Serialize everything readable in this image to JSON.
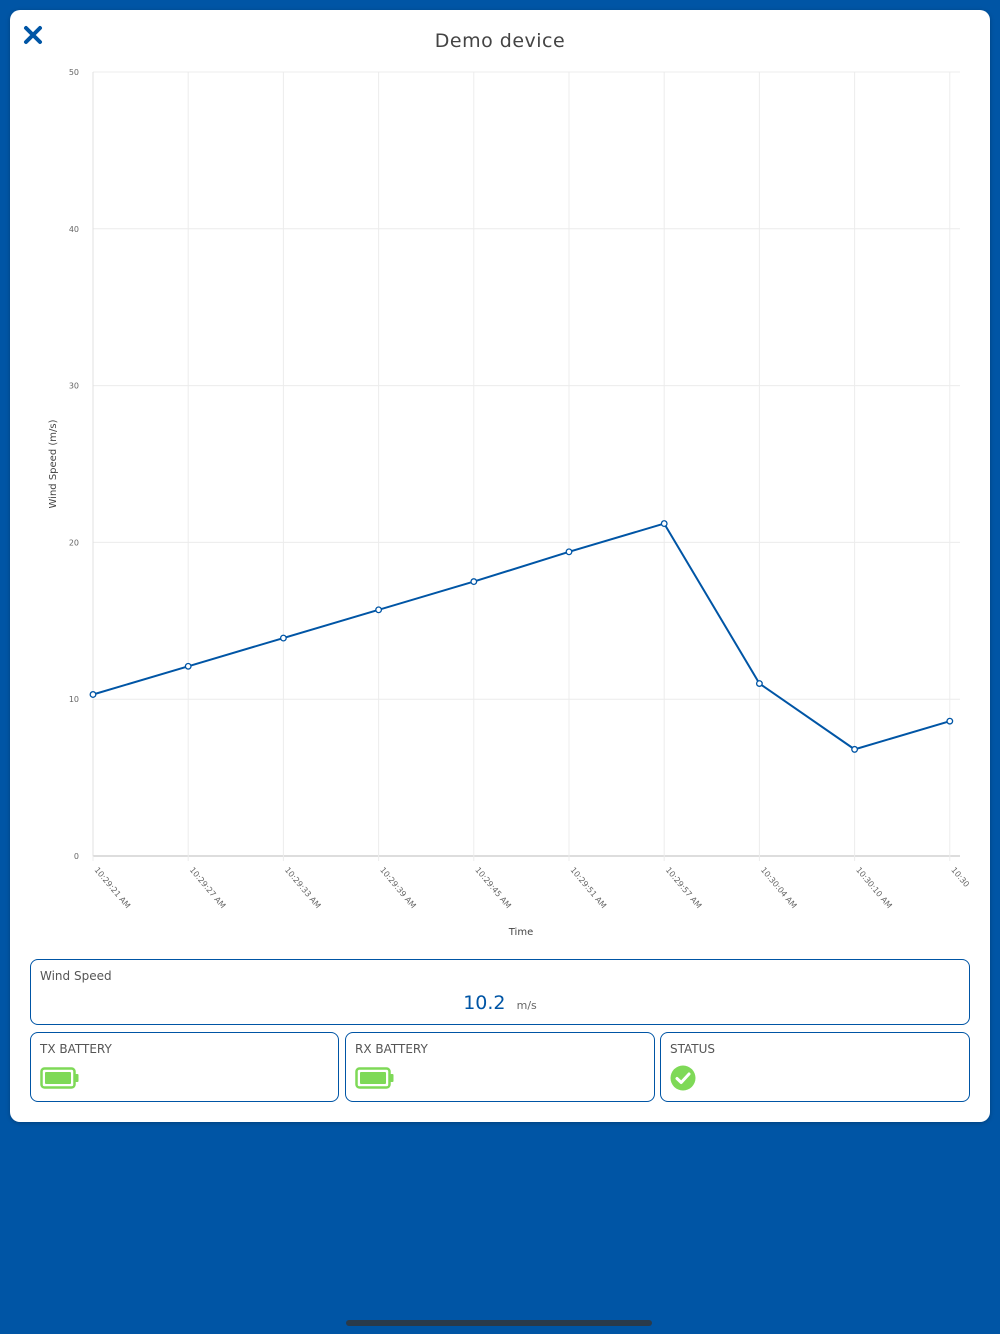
{
  "header": {
    "title": "Demo device",
    "close_icon": "close-icon"
  },
  "chart_data": {
    "type": "line",
    "title": "",
    "xlabel": "Time",
    "ylabel": "Wind Speed (m/s)",
    "ylim": [
      0,
      50
    ],
    "yticks": [
      0,
      10,
      20,
      30,
      40,
      50
    ],
    "grid": true,
    "x": [
      "10:29:21 AM",
      "10:29:27 AM",
      "10:29:33 AM",
      "10:29:39 AM",
      "10:29:45 AM",
      "10:29:51 AM",
      "10:29:57 AM",
      "10:30:04 AM",
      "10:30:10 AM",
      "10:30"
    ],
    "series": [
      {
        "values": [
          10.3,
          12.1,
          13.9,
          15.7,
          17.5,
          19.4,
          21.2,
          11.0,
          6.8,
          8.6
        ],
        "color": "#0055a5"
      }
    ]
  },
  "wind_panel": {
    "label": "Wind Speed",
    "value": "10.2",
    "unit": "m/s"
  },
  "tx_panel": {
    "label": "TX BATTERY",
    "icon": "battery-full-icon",
    "color": "#7ed957"
  },
  "rx_panel": {
    "label": "RX BATTERY",
    "icon": "battery-full-icon",
    "color": "#7ed957"
  },
  "status_panel": {
    "label": "STATUS",
    "icon": "check-circle-icon",
    "color": "#7ed957"
  }
}
